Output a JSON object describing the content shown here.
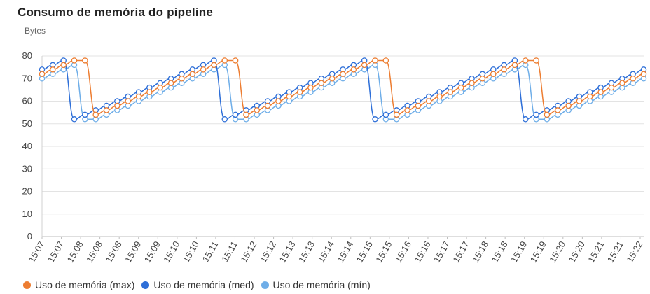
{
  "title": "Consumo de memória do pipeline",
  "chart_data": {
    "type": "line",
    "title": "Consumo de memória do pipeline",
    "ylabel": "Bytes",
    "xlabel": "",
    "ylim": [
      0,
      80
    ],
    "yticks": [
      0,
      10,
      20,
      30,
      40,
      50,
      60,
      70,
      80
    ],
    "grid": true,
    "legend_position": "bottom-left",
    "x_tick_labels": [
      "15:07",
      "15:07",
      "15:08",
      "15:08",
      "15:08",
      "15:09",
      "15:09",
      "15:10",
      "15:10",
      "15:11",
      "15:11",
      "15:12",
      "15:12",
      "15:13",
      "15:13",
      "15:14",
      "15:14",
      "15:15",
      "15:15",
      "15:16",
      "15:16",
      "15:17",
      "15:17",
      "15:18",
      "15:18",
      "15:19",
      "15:19",
      "15:20",
      "15:20",
      "15:21",
      "15:21",
      "15:22"
    ],
    "series": [
      {
        "name": "Uso de memória (max)",
        "color": "#ED7D31",
        "values": [
          72,
          74,
          76,
          78,
          78,
          54,
          56,
          58,
          60,
          62,
          64,
          66,
          68,
          70,
          72,
          74,
          76,
          78,
          78,
          54,
          56,
          58,
          60,
          62,
          64,
          66,
          68,
          70,
          72,
          74,
          76,
          78,
          78,
          54,
          56,
          58,
          60,
          62,
          64,
          66,
          68,
          70,
          72,
          74,
          76,
          78,
          78,
          54,
          56,
          58,
          60,
          62,
          64,
          66,
          68,
          70,
          72
        ]
      },
      {
        "name": "Uso de memória (med)",
        "color": "#2E6FD8",
        "values": [
          74,
          76,
          78,
          52,
          54,
          56,
          58,
          60,
          62,
          64,
          66,
          68,
          70,
          72,
          74,
          76,
          78,
          52,
          54,
          56,
          58,
          60,
          62,
          64,
          66,
          68,
          70,
          72,
          74,
          76,
          78,
          52,
          54,
          56,
          58,
          60,
          62,
          64,
          66,
          68,
          70,
          72,
          74,
          76,
          78,
          52,
          54,
          56,
          58,
          60,
          62,
          64,
          66,
          68,
          70,
          72,
          74
        ]
      },
      {
        "name": "Uso de memória (mín)",
        "color": "#6FAEE8",
        "values": [
          70,
          72,
          74,
          76,
          52,
          52,
          54,
          56,
          58,
          60,
          62,
          64,
          66,
          68,
          70,
          72,
          74,
          76,
          52,
          52,
          54,
          56,
          58,
          60,
          62,
          64,
          66,
          68,
          70,
          72,
          74,
          76,
          52,
          52,
          54,
          56,
          58,
          60,
          62,
          64,
          66,
          68,
          70,
          72,
          74,
          76,
          52,
          52,
          54,
          56,
          58,
          60,
          62,
          64,
          66,
          68,
          70
        ]
      }
    ]
  }
}
